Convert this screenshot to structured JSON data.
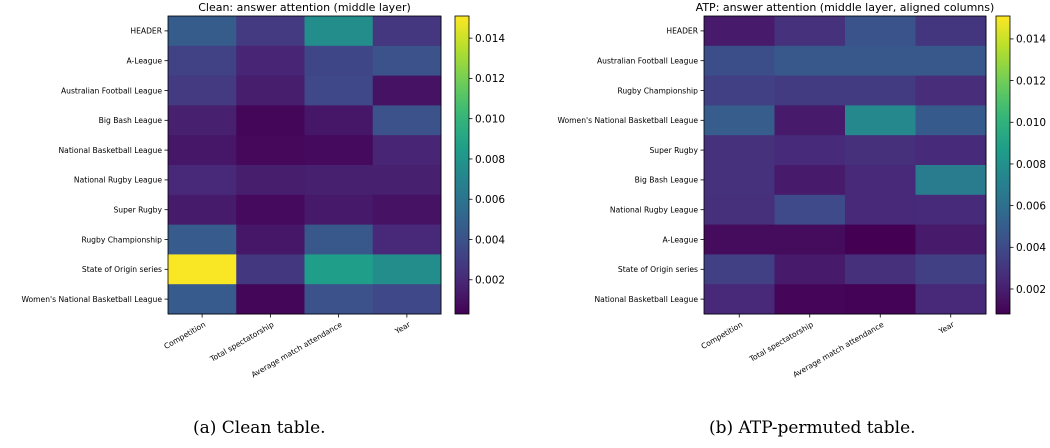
{
  "chart_data": [
    {
      "type": "heatmap",
      "title": "Clean: answer attention (middle layer)",
      "caption": "(a) Clean table.",
      "rows": [
        "HEADER",
        "A-League",
        "Australian Football League",
        "Big Bash League",
        "National Basketball League",
        "National Rugby League",
        "Super Rugby",
        "Rugby Championship",
        "State of Origin series",
        "Women's National Basketball League"
      ],
      "columns": [
        "Competition",
        "Total spectatorship",
        "Average match attendance",
        "Year"
      ],
      "values": [
        [
          0.0046,
          0.0028,
          0.0075,
          0.0026
        ],
        [
          0.0032,
          0.0018,
          0.0034,
          0.004
        ],
        [
          0.0028,
          0.0015,
          0.0035,
          0.001
        ],
        [
          0.0016,
          0.0005,
          0.0012,
          0.004
        ],
        [
          0.0012,
          0.0006,
          0.0007,
          0.0018
        ],
        [
          0.002,
          0.0015,
          0.0016,
          0.0016
        ],
        [
          0.0014,
          0.0007,
          0.0013,
          0.001
        ],
        [
          0.0045,
          0.0012,
          0.0043,
          0.002
        ],
        [
          0.015,
          0.0027,
          0.0085,
          0.0075
        ],
        [
          0.0045,
          0.0005,
          0.004,
          0.0035
        ]
      ],
      "colorbar": {
        "min": 0.0003,
        "max": 0.0151,
        "ticks": [
          "0.002",
          "0.004",
          "0.006",
          "0.008",
          "0.010",
          "0.012",
          "0.014"
        ],
        "tick_values": [
          0.002,
          0.004,
          0.006,
          0.008,
          0.01,
          0.012,
          0.014
        ]
      },
      "colormap": "viridis"
    },
    {
      "type": "heatmap",
      "title": "ATP: answer attention (middle layer, aligned columns)",
      "caption": "(b) ATP-permuted table.",
      "rows": [
        "HEADER",
        "Australian Football League",
        "Rugby Championship",
        "Women's National Basketball League",
        "Super Rugby",
        "Big Bash League",
        "National Rugby League",
        "A-League",
        "State of Origin series",
        "National Basketball League"
      ],
      "columns": [
        "Competition",
        "Total spectatorship",
        "Average match attendance",
        "Year"
      ],
      "values": [
        [
          0.0018,
          0.0028,
          0.0045,
          0.003
        ],
        [
          0.0042,
          0.0047,
          0.0047,
          0.0047
        ],
        [
          0.0035,
          0.0033,
          0.0033,
          0.0026
        ],
        [
          0.005,
          0.0018,
          0.0075,
          0.0048
        ],
        [
          0.0028,
          0.0025,
          0.0027,
          0.0025
        ],
        [
          0.0028,
          0.0018,
          0.0024,
          0.0068
        ],
        [
          0.0027,
          0.004,
          0.0024,
          0.0025
        ],
        [
          0.0012,
          0.0012,
          0.0008,
          0.0018
        ],
        [
          0.0035,
          0.0018,
          0.0027,
          0.0035
        ],
        [
          0.0024,
          0.001,
          0.0009,
          0.0024
        ]
      ],
      "colorbar": {
        "min": 0.0008,
        "max": 0.0151,
        "ticks": [
          "0.002",
          "0.004",
          "0.006",
          "0.008",
          "0.010",
          "0.012",
          "0.014"
        ],
        "tick_values": [
          0.002,
          0.004,
          0.006,
          0.008,
          0.01,
          0.012,
          0.014
        ]
      },
      "colormap": "viridis"
    }
  ]
}
